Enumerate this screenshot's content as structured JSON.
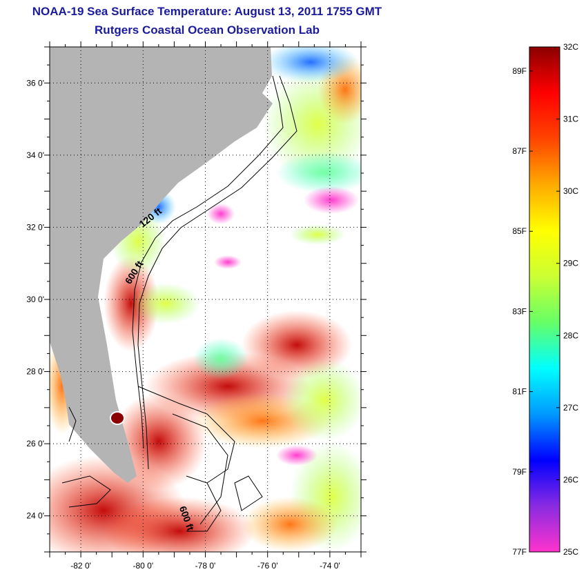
{
  "title": "NOAA-19 Sea Surface Temperature:  August 13, 2011 1755 GMT",
  "subtitle": "Rutgers Coastal Ocean Observation Lab",
  "map": {
    "lat_labels": [
      "36 0'",
      "34 0'",
      "32 0'",
      "30 0'",
      "28 0'",
      "26 0'",
      "24 0'"
    ],
    "lon_labels": [
      "-82 0'",
      "-80 0'",
      "-78 0'",
      "-76 0'",
      "-74 0'"
    ],
    "lat_range": [
      23,
      37
    ],
    "lon_range": [
      -83,
      -73
    ],
    "grid": true,
    "contour_labels": [
      {
        "text": "120 ft",
        "lon": -79.7,
        "lat": 32.2
      },
      {
        "text": "600 ft",
        "lon": -80.2,
        "lat": 30.7
      },
      {
        "text": "600 ft",
        "lon": -78.7,
        "lat": 23.9
      }
    ],
    "colors": {
      "land": "#b4b4b4",
      "cloud": "#ffffff",
      "contour": "#000000"
    }
  },
  "colorbar": {
    "celsius_labels": [
      "32C",
      "31C",
      "30C",
      "29C",
      "28C",
      "27C",
      "26C",
      "25C"
    ],
    "fahrenheit_labels": [
      "89F",
      "87F",
      "85F",
      "83F",
      "81F",
      "79F",
      "77F"
    ],
    "range_c": [
      25,
      32
    ],
    "stops": [
      "#ff33cc",
      "#8a2be2",
      "#0000ff",
      "#0099ff",
      "#00ffff",
      "#66ff66",
      "#ccff33",
      "#ffff00",
      "#ffaa00",
      "#ff4400",
      "#ff0000",
      "#8b0000"
    ]
  }
}
